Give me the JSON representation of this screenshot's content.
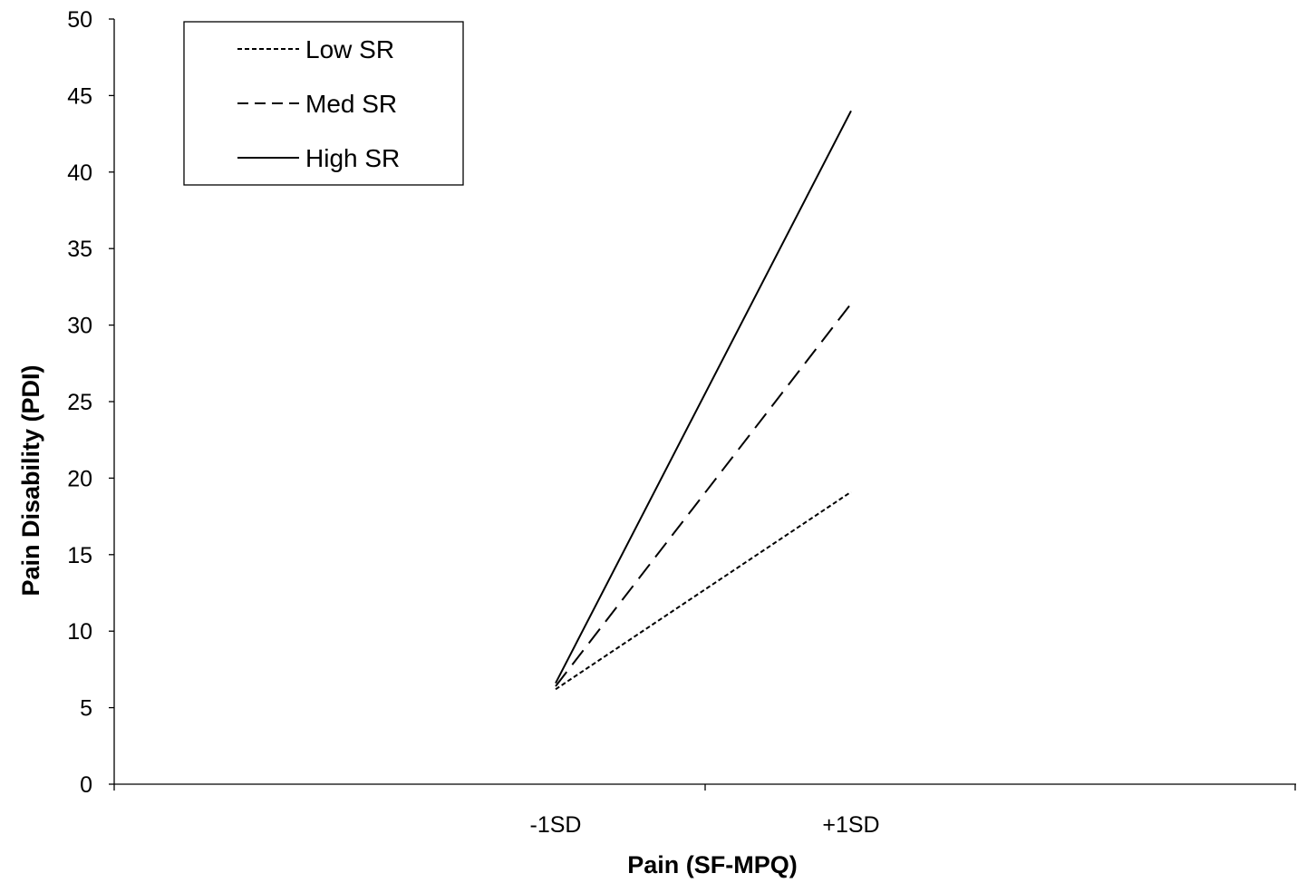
{
  "chart_data": {
    "type": "line",
    "title": "",
    "xlabel": "Pain (SF-MPQ)",
    "ylabel": "Pain Disability (PDI)",
    "categories": [
      "-1SD",
      "+1SD"
    ],
    "ylim": [
      0,
      50
    ],
    "yticks": [
      0,
      5,
      10,
      15,
      20,
      25,
      30,
      35,
      40,
      45,
      50
    ],
    "grid": false,
    "legend_position": "top-left",
    "series": [
      {
        "name": "Low SR",
        "style": "dotted",
        "color": "#000000",
        "values": [
          6.2,
          19.1
        ]
      },
      {
        "name": "Med SR",
        "style": "dashed",
        "color": "#000000",
        "values": [
          6.4,
          31.4
        ]
      },
      {
        "name": "High SR",
        "style": "solid",
        "color": "#000000",
        "values": [
          6.6,
          44.0
        ]
      }
    ]
  }
}
